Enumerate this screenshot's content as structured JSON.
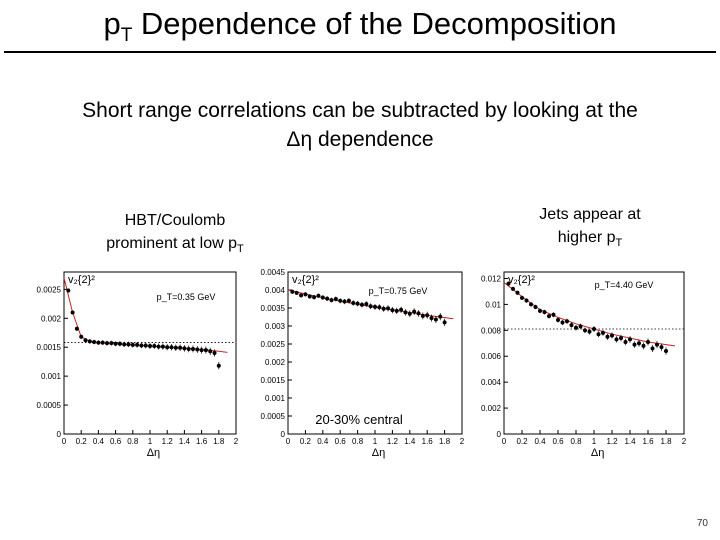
{
  "slide": {
    "title_main": "p",
    "title_sub": "T",
    "title_rest": " Dependence of the Decomposition",
    "subtitle_line1": "Short range correlations can be subtracted by looking at the",
    "subtitle_line2": "Δη dependence",
    "page_number": "70"
  },
  "callouts": {
    "hbt_line1": "HBT/Coulomb",
    "hbt_line2": "prominent at low p",
    "hbt_sub": "T",
    "jets_line1": "Jets appear at",
    "jets_line2": "higher p",
    "jets_sub": "T"
  },
  "chart_data": [
    {
      "type": "scatter",
      "ylabel": "v₂{2}²",
      "annotation": "p_T=0.35 GeV",
      "xlabel": "Δη",
      "xlim": [
        0,
        2
      ],
      "ylim": [
        0,
        0.0028
      ],
      "xticks": [
        "0",
        "0.2",
        "0.4",
        "0.6",
        "0.8",
        "1",
        "1.2",
        "1.4",
        "1.6",
        "1.8",
        "2"
      ],
      "yticks": [
        "0",
        "0.0005",
        "0.001",
        "0.0015",
        "0.002",
        "0.0025"
      ],
      "ref_line": 0.00158,
      "x": [
        0.05,
        0.1,
        0.15,
        0.2,
        0.25,
        0.3,
        0.35,
        0.4,
        0.45,
        0.5,
        0.55,
        0.6,
        0.65,
        0.7,
        0.75,
        0.8,
        0.85,
        0.9,
        0.95,
        1.0,
        1.05,
        1.1,
        1.15,
        1.2,
        1.25,
        1.3,
        1.35,
        1.4,
        1.45,
        1.5,
        1.55,
        1.6,
        1.65,
        1.7,
        1.75,
        1.8
      ],
      "y": [
        0.00248,
        0.0021,
        0.00182,
        0.00168,
        0.00162,
        0.0016,
        0.00159,
        0.00158,
        0.00158,
        0.00157,
        0.00157,
        0.00156,
        0.00156,
        0.00155,
        0.00155,
        0.00154,
        0.00154,
        0.00153,
        0.00153,
        0.00152,
        0.00152,
        0.00151,
        0.00151,
        0.0015,
        0.0015,
        0.00149,
        0.00149,
        0.00148,
        0.00147,
        0.00147,
        0.00146,
        0.00145,
        0.00145,
        0.00143,
        0.0014,
        0.00118
      ],
      "fit_x": [
        0.0,
        0.1,
        0.2,
        0.3,
        0.4,
        0.6,
        0.8,
        1.0,
        1.2,
        1.4,
        1.6,
        1.8,
        1.9
      ],
      "fit_y": [
        0.0027,
        0.0021,
        0.00168,
        0.0016,
        0.00158,
        0.00156,
        0.00154,
        0.00152,
        0.0015,
        0.00148,
        0.00146,
        0.00143,
        0.00141
      ]
    },
    {
      "type": "scatter",
      "ylabel": "v₂{2}²",
      "annotation": "p_T=0.75 GeV",
      "xlabel": "Δη",
      "caption": "20-30% central",
      "xlim": [
        0,
        2
      ],
      "ylim": [
        0,
        0.0045
      ],
      "xticks": [
        "0",
        "0.2",
        "0.4",
        "0.6",
        "0.8",
        "1",
        "1.2",
        "1.4",
        "1.6",
        "1.8",
        "2"
      ],
      "yticks": [
        "0",
        "0.0005",
        "0.001",
        "0.0015",
        "0.002",
        "0.0025",
        "0.003",
        "0.0035",
        "0.004",
        "0.0045"
      ],
      "ref_line": null,
      "x": [
        0.05,
        0.1,
        0.15,
        0.2,
        0.25,
        0.3,
        0.35,
        0.4,
        0.45,
        0.5,
        0.55,
        0.6,
        0.65,
        0.7,
        0.75,
        0.8,
        0.85,
        0.9,
        0.95,
        1.0,
        1.05,
        1.1,
        1.15,
        1.2,
        1.25,
        1.3,
        1.35,
        1.4,
        1.45,
        1.5,
        1.55,
        1.6,
        1.65,
        1.7,
        1.75,
        1.8
      ],
      "y": [
        0.00395,
        0.00392,
        0.00385,
        0.00388,
        0.00382,
        0.0038,
        0.00384,
        0.00379,
        0.00376,
        0.00372,
        0.00375,
        0.0037,
        0.00368,
        0.0037,
        0.00364,
        0.00362,
        0.00359,
        0.00361,
        0.00355,
        0.00353,
        0.00352,
        0.00348,
        0.00349,
        0.00344,
        0.00342,
        0.00345,
        0.00338,
        0.00334,
        0.0034,
        0.00335,
        0.00328,
        0.0033,
        0.00322,
        0.00318,
        0.00326,
        0.0031
      ],
      "fit_x": [
        0.0,
        0.4,
        0.8,
        1.2,
        1.6,
        1.9
      ],
      "fit_y": [
        0.004,
        0.00378,
        0.0036,
        0.00345,
        0.0033,
        0.0032
      ]
    },
    {
      "type": "scatter",
      "ylabel": "v₂{2}²",
      "annotation": "p_T=4.40 GeV",
      "xlabel": "Δη",
      "xlim": [
        0,
        2
      ],
      "ylim": [
        0,
        0.0125
      ],
      "xticks": [
        "0",
        "0.2",
        "0.4",
        "0.6",
        "0.8",
        "1",
        "1.2",
        "1.4",
        "1.6",
        "1.8",
        "2"
      ],
      "yticks": [
        "0",
        "0.002",
        "0.004",
        "0.006",
        "0.008",
        "0.01",
        "0.012"
      ],
      "ref_line": 0.0081,
      "x": [
        0.05,
        0.1,
        0.15,
        0.2,
        0.25,
        0.3,
        0.35,
        0.4,
        0.45,
        0.5,
        0.55,
        0.6,
        0.65,
        0.7,
        0.75,
        0.8,
        0.85,
        0.9,
        0.95,
        1.0,
        1.05,
        1.1,
        1.15,
        1.2,
        1.25,
        1.3,
        1.35,
        1.4,
        1.45,
        1.5,
        1.55,
        1.6,
        1.65,
        1.7,
        1.75,
        1.8
      ],
      "y": [
        0.0116,
        0.0112,
        0.0109,
        0.0105,
        0.0103,
        0.01,
        0.0098,
        0.0095,
        0.0094,
        0.0091,
        0.0092,
        0.0088,
        0.0086,
        0.0087,
        0.0084,
        0.0082,
        0.0083,
        0.008,
        0.0079,
        0.0081,
        0.0077,
        0.0078,
        0.0075,
        0.0076,
        0.0073,
        0.0074,
        0.0071,
        0.0073,
        0.0069,
        0.007,
        0.0068,
        0.0071,
        0.0066,
        0.0069,
        0.0067,
        0.0064
      ],
      "fit_x": [
        0.0,
        0.2,
        0.4,
        0.6,
        0.8,
        1.0,
        1.2,
        1.4,
        1.6,
        1.8,
        1.9
      ],
      "fit_y": [
        0.0117,
        0.0106,
        0.0096,
        0.009,
        0.0085,
        0.0081,
        0.0077,
        0.0074,
        0.0071,
        0.0069,
        0.0068
      ]
    }
  ]
}
